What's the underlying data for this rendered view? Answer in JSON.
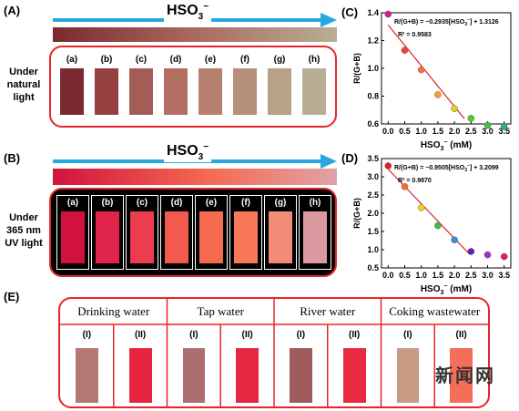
{
  "panels": {
    "A": {
      "label": "(A)",
      "arrow_label_main": "HSO",
      "arrow_label_sub": "3",
      "arrow_label_sup": "−",
      "side_label": [
        "Under",
        "natural",
        "light"
      ],
      "strips": [
        {
          "label": "(a)",
          "color": "#7a2a30"
        },
        {
          "label": "(b)",
          "color": "#94403f"
        },
        {
          "label": "(c)",
          "color": "#a45c57"
        },
        {
          "label": "(d)",
          "color": "#b26f62"
        },
        {
          "label": "(e)",
          "color": "#b7806e"
        },
        {
          "label": "(f)",
          "color": "#b58f79"
        },
        {
          "label": "(g)",
          "color": "#b7a288"
        },
        {
          "label": "(h)",
          "color": "#b9ae95"
        }
      ]
    },
    "B": {
      "label": "(B)",
      "arrow_label_main": "HSO",
      "arrow_label_sub": "3",
      "arrow_label_sup": "−",
      "side_label": [
        "Under",
        "365 nm",
        "UV light"
      ],
      "strips": [
        {
          "label": "(a)",
          "color": "#d2123e"
        },
        {
          "label": "(b)",
          "color": "#e0244a"
        },
        {
          "label": "(c)",
          "color": "#ec3d4e"
        },
        {
          "label": "(d)",
          "color": "#f25a4e"
        },
        {
          "label": "(e)",
          "color": "#f66a4e"
        },
        {
          "label": "(f)",
          "color": "#f87858"
        },
        {
          "label": "(g)",
          "color": "#f08c78"
        },
        {
          "label": "(h)",
          "color": "#dc9aa0"
        }
      ]
    },
    "E": {
      "label": "(E)",
      "groups": [
        {
          "name": "Drinking water",
          "samples": [
            {
              "label": "(I)",
              "color": "#b57873"
            },
            {
              "label": "(II)",
              "color": "#e8253f"
            }
          ]
        },
        {
          "name": "Tap water",
          "samples": [
            {
              "label": "(I)",
              "color": "#ad6e72"
            },
            {
              "label": "(II)",
              "color": "#e42842"
            }
          ]
        },
        {
          "name": "River water",
          "samples": [
            {
              "label": "(I)",
              "color": "#9f5c5c"
            },
            {
              "label": "(II)",
              "color": "#e82b40"
            }
          ]
        },
        {
          "name": "Coking wastewater",
          "samples": [
            {
              "label": "(I)",
              "color": "#c79a84"
            },
            {
              "label": "(II)",
              "color": "#f46e5a"
            }
          ]
        }
      ]
    },
    "watermark": "新闻网"
  },
  "chart_data": [
    {
      "panel": "(C)",
      "type": "scatter",
      "ylabel": "R/(G+B)",
      "xlabel_main": "HSO",
      "xlabel_sub": "3",
      "xlabel_sup": "−",
      "xlabel_unit": " (mM)",
      "xlim": [
        -0.2,
        3.7
      ],
      "ylim": [
        0.6,
        1.4
      ],
      "xticks": [
        0.0,
        0.5,
        1.0,
        1.5,
        2.0,
        2.5,
        3.0,
        3.5
      ],
      "xtick_labels": [
        "0.0",
        "0.5",
        "1.0",
        "1.5",
        "2.0",
        "2.5",
        "3.0",
        "3.5"
      ],
      "yticks": [
        0.6,
        0.8,
        1.0,
        1.2,
        1.4
      ],
      "ytick_labels": [
        "0.6",
        "0.8",
        "1.0",
        "1.2",
        "1.4"
      ],
      "points": [
        {
          "x": 0.0,
          "y": 1.39,
          "color": "#d02090"
        },
        {
          "x": 0.5,
          "y": 1.13,
          "color": "#e84a3a"
        },
        {
          "x": 1.0,
          "y": 0.99,
          "color": "#f07040"
        },
        {
          "x": 1.5,
          "y": 0.81,
          "color": "#f6a030"
        },
        {
          "x": 2.0,
          "y": 0.71,
          "color": "#d9d020"
        },
        {
          "x": 2.5,
          "y": 0.64,
          "color": "#58c830"
        },
        {
          "x": 3.0,
          "y": 0.59,
          "color": "#40c040"
        },
        {
          "x": 3.5,
          "y": 0.58,
          "color": "#30b070"
        }
      ],
      "fit": {
        "slope": -0.2935,
        "intercept": 1.3126,
        "x_range": [
          0.0,
          2.3
        ],
        "color": "#e32020"
      },
      "equation_text": "R/(G+B) = −0.2935[HSO",
      "equation_sub": "3",
      "equation_sup": "−",
      "equation_tail": "] + 1.3126",
      "r2_text": "R² = 0.9583"
    },
    {
      "panel": "(D)",
      "type": "scatter",
      "ylabel": "R/(G+B)",
      "xlabel_main": "HSO",
      "xlabel_sub": "3",
      "xlabel_sup": "−",
      "xlabel_unit": " (mM)",
      "xlim": [
        -0.2,
        3.7
      ],
      "ylim": [
        0.5,
        3.5
      ],
      "xticks": [
        0.0,
        0.5,
        1.0,
        1.5,
        2.0,
        2.5,
        3.0,
        3.5
      ],
      "xtick_labels": [
        "0.0",
        "0.5",
        "1.0",
        "1.5",
        "2.0",
        "2.5",
        "3.0",
        "3.5"
      ],
      "yticks": [
        0.5,
        1.0,
        1.5,
        2.0,
        2.5,
        3.0,
        3.5
      ],
      "ytick_labels": [
        "0.5",
        "1.0",
        "1.5",
        "2.0",
        "2.5",
        "3.0",
        "3.5"
      ],
      "points": [
        {
          "x": 0.0,
          "y": 3.3,
          "color": "#e02020"
        },
        {
          "x": 0.5,
          "y": 2.73,
          "color": "#f07020"
        },
        {
          "x": 1.0,
          "y": 2.15,
          "color": "#f0d020"
        },
        {
          "x": 1.5,
          "y": 1.66,
          "color": "#40c040"
        },
        {
          "x": 2.0,
          "y": 1.27,
          "color": "#3090e0"
        },
        {
          "x": 2.5,
          "y": 0.95,
          "color": "#6020c0"
        },
        {
          "x": 3.0,
          "y": 0.86,
          "color": "#a030c0"
        },
        {
          "x": 3.5,
          "y": 0.81,
          "color": "#e02050"
        }
      ],
      "fit": {
        "slope": -0.9505,
        "intercept": 3.2099,
        "x_range": [
          0.0,
          2.45
        ],
        "color": "#e32020"
      },
      "equation_text": "R/(G+B) = −0.9505[HSO",
      "equation_sub": "3",
      "equation_sup": "−",
      "equation_tail": "] + 3.2099",
      "r2_text": "R² = 0.9870"
    }
  ]
}
